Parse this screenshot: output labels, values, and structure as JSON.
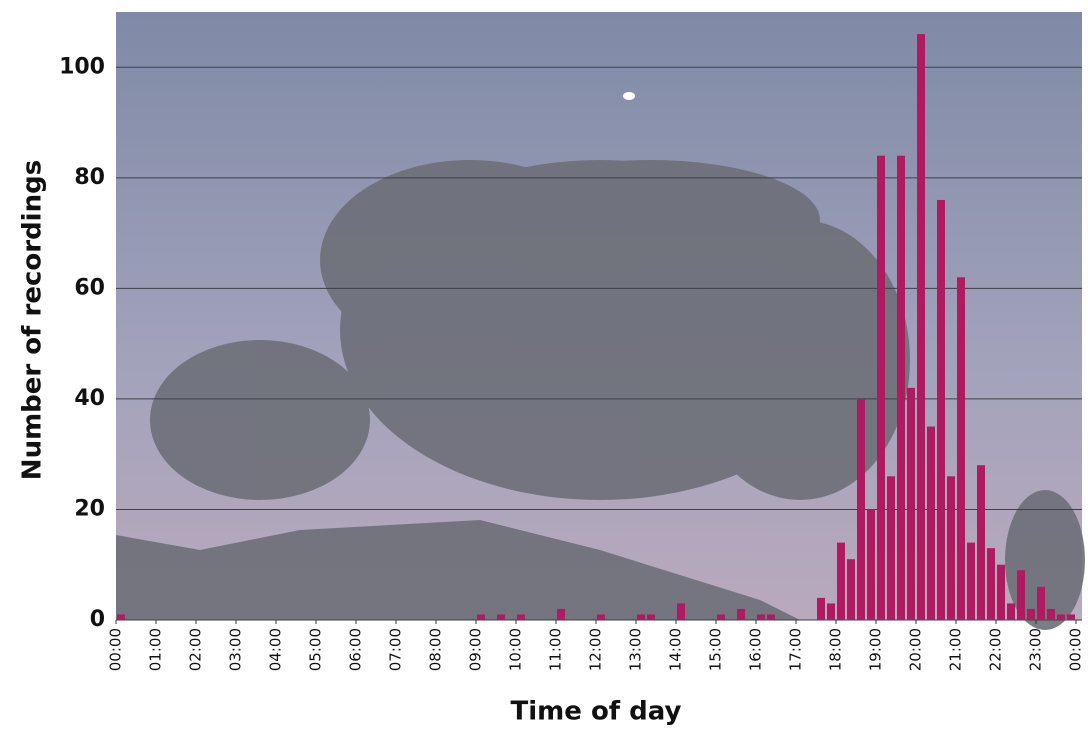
{
  "chart_data": {
    "type": "histogram",
    "x_label": "Time of day",
    "y_label": "Number of recordings",
    "bins": [
      0,
      15,
      30,
      45,
      60,
      75,
      90,
      105,
      120,
      135,
      150,
      165,
      180,
      195,
      210,
      225,
      240,
      255,
      270,
      285,
      300,
      315,
      330,
      345,
      360,
      375,
      390,
      405,
      420,
      435,
      450,
      465,
      480,
      495,
      510,
      525,
      540,
      555,
      570,
      585,
      600,
      615,
      630,
      645,
      660,
      675,
      690,
      705,
      720,
      735,
      750,
      765,
      780,
      795,
      810,
      825,
      840,
      855,
      870,
      885,
      900,
      915,
      930,
      945,
      960,
      975,
      990,
      1005,
      1020,
      1035,
      1050,
      1065,
      1080,
      1095,
      1110,
      1125,
      1140,
      1155,
      1170,
      1185,
      1200,
      1215,
      1230,
      1245,
      1260,
      1275,
      1290,
      1305,
      1320,
      1335,
      1350,
      1365,
      1380,
      1395,
      1410,
      1425,
      1440
    ],
    "values": [
      1,
      0,
      0,
      0,
      0,
      0,
      0,
      0,
      0,
      0,
      0,
      0,
      0,
      0,
      0,
      0,
      0,
      0,
      0,
      0,
      0,
      0,
      0,
      0,
      0,
      0,
      0,
      0,
      0,
      0,
      0,
      0,
      0,
      0,
      0,
      0,
      1,
      0,
      1,
      0,
      1,
      0,
      0,
      0,
      2,
      0,
      0,
      0,
      1,
      0,
      0,
      0,
      1,
      1,
      0,
      0,
      3,
      0,
      0,
      0,
      1,
      0,
      2,
      0,
      1,
      1,
      0,
      0,
      0,
      0,
      4,
      3,
      14,
      11,
      40,
      20,
      84,
      26,
      84,
      42,
      106,
      35,
      76,
      26,
      62,
      14,
      28,
      13,
      10,
      3,
      9,
      2,
      6,
      2,
      1,
      1
    ],
    "color": "#b01a60",
    "xlim": [
      0,
      1440
    ],
    "xticks": [
      {
        "value": 0,
        "label": "00:00"
      },
      {
        "value": 60,
        "label": "01:00"
      },
      {
        "value": 120,
        "label": "02:00"
      },
      {
        "value": 180,
        "label": "03:00"
      },
      {
        "value": 240,
        "label": "04:00"
      },
      {
        "value": 300,
        "label": "05:00"
      },
      {
        "value": 360,
        "label": "06:00"
      },
      {
        "value": 420,
        "label": "07:00"
      },
      {
        "value": 480,
        "label": "08:00"
      },
      {
        "value": 540,
        "label": "09:00"
      },
      {
        "value": 600,
        "label": "10:00"
      },
      {
        "value": 660,
        "label": "11:00"
      },
      {
        "value": 720,
        "label": "12:00"
      },
      {
        "value": 780,
        "label": "13:00"
      },
      {
        "value": 840,
        "label": "14:00"
      },
      {
        "value": 900,
        "label": "15:00"
      },
      {
        "value": 960,
        "label": "16:00"
      },
      {
        "value": 1020,
        "label": "17:00"
      },
      {
        "value": 1080,
        "label": "18:00"
      },
      {
        "value": 1140,
        "label": "19:00"
      },
      {
        "value": 1200,
        "label": "20:00"
      },
      {
        "value": 1260,
        "label": "21:00"
      },
      {
        "value": 1320,
        "label": "22:00"
      },
      {
        "value": 1380,
        "label": "23:00"
      },
      {
        "value": 1440,
        "label": "00:00"
      }
    ],
    "ylim": [
      0,
      110
    ],
    "yticks": [
      0,
      20,
      40,
      60,
      80,
      100
    ],
    "grid": true
  }
}
